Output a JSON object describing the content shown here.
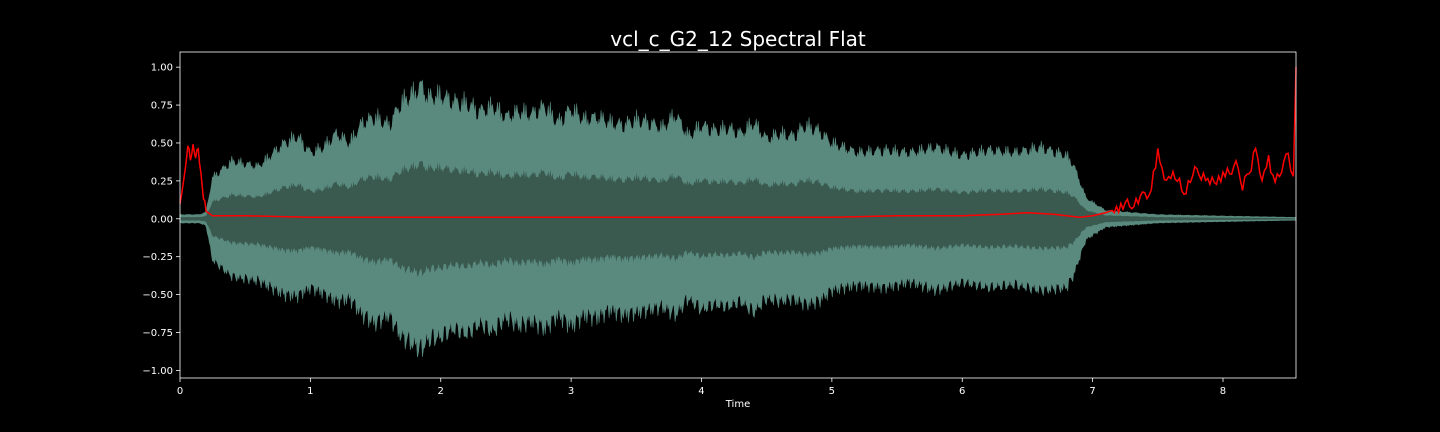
{
  "chart_data": {
    "type": "area",
    "title": "vcl_c_G2_12 Spectral Flat",
    "xlabel": "Time",
    "ylabel": "",
    "xlim": [
      0,
      8.56
    ],
    "ylim": [
      -1.05,
      1.1
    ],
    "x_ticks": [
      "0",
      "1",
      "2",
      "3",
      "4",
      "5",
      "6",
      "7",
      "8"
    ],
    "y_ticks": [
      "1.00",
      "0.75",
      "0.50",
      "0.25",
      "0.00",
      "−0.25",
      "−0.50",
      "−0.75",
      "−1.00"
    ],
    "grid": false,
    "legend": "none",
    "colors": {
      "background": "#000000",
      "frame": "#ffffff",
      "waveform_outer": "#5a8a7e",
      "waveform_inner": "#3a5a50",
      "spectral_flatness": "#ff0000"
    },
    "series": [
      {
        "kind": "waveform-envelope",
        "x": [
          0,
          0.15,
          0.2,
          0.25,
          0.4,
          0.6,
          0.8,
          0.9,
          1.0,
          1.1,
          1.2,
          1.3,
          1.4,
          1.5,
          1.6,
          1.7,
          1.8,
          1.85,
          1.9,
          2.0,
          2.1,
          2.2,
          2.3,
          2.4,
          2.5,
          2.6,
          2.7,
          2.8,
          2.9,
          3.0,
          3.1,
          3.2,
          3.3,
          3.4,
          3.5,
          3.6,
          3.7,
          3.8,
          3.9,
          4.0,
          4.1,
          4.2,
          4.3,
          4.4,
          4.5,
          4.6,
          4.7,
          4.8,
          4.9,
          5.0,
          5.2,
          5.4,
          5.6,
          5.8,
          6.0,
          6.2,
          6.4,
          6.6,
          6.8,
          6.85,
          6.95,
          7.1,
          7.5,
          8.0,
          8.56
        ],
        "upper": [
          0.03,
          0.03,
          0.05,
          0.3,
          0.42,
          0.38,
          0.55,
          0.6,
          0.48,
          0.52,
          0.62,
          0.55,
          0.7,
          0.74,
          0.68,
          0.85,
          0.92,
          0.97,
          0.88,
          0.9,
          0.85,
          0.84,
          0.78,
          0.82,
          0.74,
          0.78,
          0.76,
          0.82,
          0.7,
          0.8,
          0.72,
          0.74,
          0.7,
          0.68,
          0.72,
          0.7,
          0.66,
          0.76,
          0.6,
          0.68,
          0.64,
          0.66,
          0.62,
          0.7,
          0.58,
          0.62,
          0.6,
          0.68,
          0.64,
          0.55,
          0.48,
          0.5,
          0.48,
          0.52,
          0.46,
          0.5,
          0.48,
          0.52,
          0.46,
          0.4,
          0.15,
          0.06,
          0.03,
          0.02,
          0.01
        ],
        "lower": [
          -0.03,
          -0.03,
          -0.05,
          -0.3,
          -0.42,
          -0.45,
          -0.55,
          -0.56,
          -0.5,
          -0.54,
          -0.6,
          -0.58,
          -0.7,
          -0.76,
          -0.7,
          -0.86,
          -0.92,
          -0.96,
          -0.88,
          -0.86,
          -0.8,
          -0.84,
          -0.76,
          -0.82,
          -0.72,
          -0.78,
          -0.74,
          -0.8,
          -0.7,
          -0.78,
          -0.7,
          -0.72,
          -0.66,
          -0.7,
          -0.68,
          -0.66,
          -0.64,
          -0.7,
          -0.58,
          -0.66,
          -0.62,
          -0.64,
          -0.6,
          -0.68,
          -0.58,
          -0.6,
          -0.58,
          -0.62,
          -0.6,
          -0.52,
          -0.48,
          -0.5,
          -0.46,
          -0.52,
          -0.46,
          -0.5,
          -0.48,
          -0.52,
          -0.5,
          -0.42,
          -0.15,
          -0.06,
          -0.03,
          -0.02,
          -0.01
        ]
      },
      {
        "kind": "line",
        "x": [
          0,
          0.03,
          0.06,
          0.08,
          0.1,
          0.12,
          0.14,
          0.16,
          0.18,
          0.2,
          0.25,
          0.5,
          1.0,
          1.5,
          2.0,
          2.5,
          3.0,
          3.5,
          4.0,
          4.5,
          5.0,
          5.5,
          6.0,
          6.3,
          6.5,
          6.7,
          6.9,
          7.0,
          7.1,
          7.2,
          7.3,
          7.4,
          7.45,
          7.5,
          7.55,
          7.6,
          7.7,
          7.8,
          7.9,
          8.0,
          8.1,
          8.15,
          8.2,
          8.25,
          8.3,
          8.35,
          8.4,
          8.45,
          8.5,
          8.54,
          8.56
        ],
        "values": [
          0.1,
          0.25,
          0.5,
          0.38,
          0.48,
          0.42,
          0.45,
          0.3,
          0.15,
          0.05,
          0.02,
          0.02,
          0.01,
          0.01,
          0.01,
          0.01,
          0.01,
          0.01,
          0.01,
          0.01,
          0.01,
          0.02,
          0.02,
          0.03,
          0.04,
          0.03,
          0.01,
          0.02,
          0.04,
          0.07,
          0.1,
          0.15,
          0.2,
          0.45,
          0.22,
          0.3,
          0.18,
          0.32,
          0.25,
          0.28,
          0.35,
          0.22,
          0.3,
          0.47,
          0.28,
          0.38,
          0.22,
          0.33,
          0.42,
          0.28,
          1.0
        ]
      }
    ]
  }
}
